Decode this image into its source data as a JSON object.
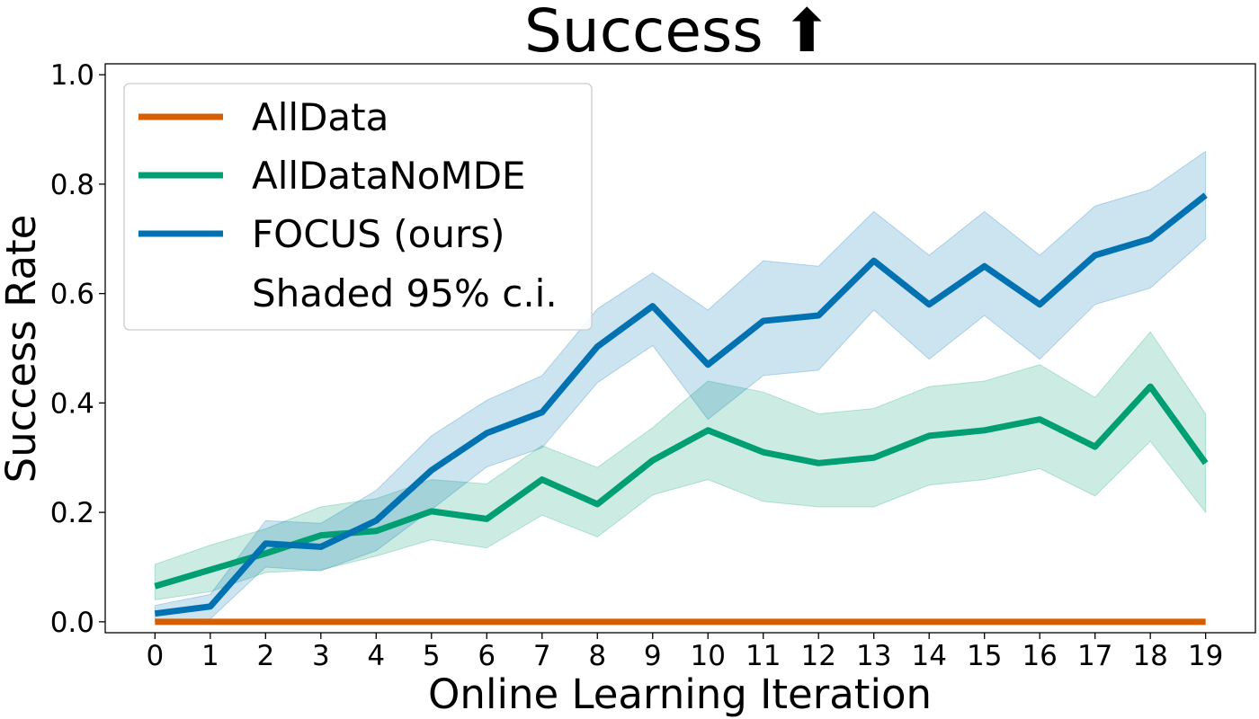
{
  "chart_data": {
    "type": "line",
    "title": "Success ⬆",
    "xlabel": "Online Learning Iteration",
    "ylabel": "Success Rate",
    "x": [
      0,
      1,
      2,
      3,
      4,
      5,
      6,
      7,
      8,
      9,
      10,
      11,
      12,
      13,
      14,
      15,
      16,
      17,
      18,
      19
    ],
    "xlim": [
      -0.9,
      19.9
    ],
    "ylim": [
      -0.02,
      1.02
    ],
    "yticks": [
      0.0,
      0.2,
      0.4,
      0.6,
      0.8,
      1.0
    ],
    "ytick_labels": [
      "0.0",
      "0.2",
      "0.4",
      "0.6",
      "0.8",
      "1.0"
    ],
    "grid": false,
    "legend_position": "top-left",
    "series": [
      {
        "name": "AllData",
        "color": "#d55e00",
        "values": [
          0,
          0,
          0,
          0,
          0,
          0,
          0,
          0,
          0,
          0,
          0,
          0,
          0,
          0,
          0,
          0,
          0,
          0,
          0,
          0
        ]
      },
      {
        "name": "AllDataNoMDE",
        "color": "#009e73",
        "values": [
          0.065,
          0.095,
          0.125,
          0.158,
          0.166,
          0.202,
          0.188,
          0.26,
          0.215,
          0.295,
          0.35,
          0.31,
          0.29,
          0.3,
          0.34,
          0.35,
          0.37,
          0.32,
          0.43,
          0.29
        ],
        "ci_lower": [
          0.04,
          0.055,
          0.09,
          0.095,
          0.12,
          0.15,
          0.135,
          0.195,
          0.155,
          0.232,
          0.26,
          0.22,
          0.21,
          0.21,
          0.25,
          0.26,
          0.28,
          0.23,
          0.33,
          0.2
        ],
        "ci_upper": [
          0.105,
          0.14,
          0.17,
          0.21,
          0.225,
          0.26,
          0.252,
          0.322,
          0.282,
          0.355,
          0.44,
          0.42,
          0.38,
          0.39,
          0.43,
          0.44,
          0.47,
          0.41,
          0.53,
          0.38
        ]
      },
      {
        "name": "FOCUS (ours)",
        "color": "#0072b2",
        "values": [
          0.015,
          0.028,
          0.143,
          0.137,
          0.185,
          0.277,
          0.345,
          0.383,
          0.503,
          0.577,
          0.47,
          0.55,
          0.56,
          0.66,
          0.58,
          0.65,
          0.58,
          0.67,
          0.7,
          0.78
        ],
        "ci_lower": [
          0.0,
          0.005,
          0.1,
          0.093,
          0.13,
          0.205,
          0.283,
          0.318,
          0.437,
          0.505,
          0.37,
          0.45,
          0.46,
          0.57,
          0.48,
          0.56,
          0.48,
          0.58,
          0.61,
          0.7
        ],
        "ci_upper": [
          0.03,
          0.05,
          0.185,
          0.18,
          0.24,
          0.34,
          0.405,
          0.45,
          0.572,
          0.638,
          0.57,
          0.66,
          0.65,
          0.75,
          0.67,
          0.75,
          0.67,
          0.76,
          0.79,
          0.86
        ]
      }
    ],
    "legend_extra": "Shaded 95% c.i."
  }
}
